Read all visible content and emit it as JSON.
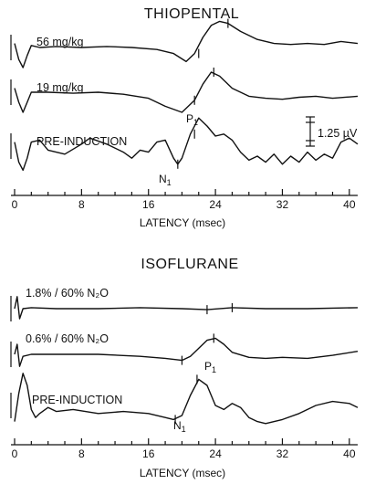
{
  "chart_data": [
    {
      "type": "line",
      "title": "THIOPENTAL",
      "xlabel": "LATENCY (msec)",
      "xlim": [
        0,
        41
      ],
      "xticks": [
        0,
        8,
        16,
        24,
        32,
        40
      ],
      "scale_bar": "1.25 µV",
      "series": [
        {
          "name": "56 mg/kg",
          "x": [
            0,
            0.5,
            1,
            1.5,
            2,
            3,
            5,
            8,
            11,
            14,
            17,
            19,
            20.5,
            21.5,
            22.5,
            23.5,
            24.5,
            25.5,
            27,
            29,
            31,
            33,
            35,
            37,
            39,
            41
          ],
          "y": [
            0.2,
            -0.6,
            -1.0,
            -0.4,
            0.1,
            0.0,
            0.05,
            0.0,
            0.05,
            0.0,
            -0.1,
            -0.3,
            -0.7,
            -0.3,
            0.5,
            1.1,
            1.3,
            1.2,
            0.8,
            0.4,
            0.2,
            0.15,
            0.2,
            0.15,
            0.3,
            0.2
          ]
        },
        {
          "name": "19 mg/kg",
          "x": [
            0,
            0.5,
            1,
            1.5,
            2,
            4,
            7,
            10,
            13,
            16,
            18,
            20,
            21.5,
            22.5,
            23.5,
            24.5,
            26,
            28,
            30,
            32,
            34,
            36,
            38,
            41
          ],
          "y": [
            0.2,
            -0.5,
            -1.0,
            -0.5,
            0.0,
            0.0,
            -0.05,
            0.0,
            -0.1,
            -0.3,
            -0.7,
            -1.0,
            -0.4,
            0.4,
            1.0,
            0.8,
            0.2,
            -0.2,
            -0.3,
            -0.35,
            -0.25,
            -0.2,
            -0.3,
            -0.2
          ]
        },
        {
          "name": "PRE-INDUCTION",
          "x": [
            0,
            0.5,
            1,
            1.5,
            2,
            3,
            4,
            6,
            8,
            9,
            11,
            13,
            14,
            15,
            16,
            17,
            18,
            19,
            19.5,
            20,
            21,
            22,
            23,
            24,
            25,
            26,
            27,
            28,
            29,
            30,
            31,
            32,
            33,
            34,
            35,
            36,
            37,
            38,
            39,
            40,
            41
          ],
          "y": [
            0.2,
            -0.8,
            -1.2,
            -0.6,
            0.2,
            0.3,
            -0.2,
            -0.4,
            0.1,
            0.4,
            0.1,
            -0.3,
            -0.6,
            -0.2,
            -0.3,
            0.2,
            0.3,
            -0.6,
            -0.9,
            -0.6,
            0.6,
            1.4,
            1.0,
            0.5,
            0.6,
            0.3,
            -0.3,
            -0.7,
            -0.5,
            -0.8,
            -0.4,
            -0.9,
            -0.5,
            -0.8,
            -0.3,
            -0.7,
            -0.4,
            -0.6,
            0.2,
            0.4,
            0.1
          ]
        }
      ],
      "annotations": [
        {
          "text": "P1",
          "x": 21.5,
          "series": "19 mg/kg"
        },
        {
          "text": "N1",
          "x": 19.5,
          "series": "PRE-INDUCTION"
        }
      ]
    },
    {
      "type": "line",
      "title": "ISOFLURANE",
      "xlabel": "LATENCY (msec)",
      "xlim": [
        0,
        41
      ],
      "xticks": [
        0,
        8,
        16,
        24,
        32,
        40
      ],
      "series": [
        {
          "name": "1.8% / 60% N₂O",
          "x": [
            0,
            0.3,
            0.6,
            1,
            2,
            5,
            10,
            15,
            20,
            23,
            26,
            30,
            35,
            41
          ],
          "y": [
            0.0,
            0.6,
            -0.5,
            0.0,
            0.05,
            0.0,
            0.0,
            0.05,
            0.0,
            -0.05,
            0.05,
            0.0,
            0.0,
            0.05
          ]
        },
        {
          "name": "0.6% / 60% N₂O",
          "x": [
            0,
            0.3,
            0.6,
            1,
            2,
            5,
            10,
            15,
            18,
            20,
            21,
            22,
            23,
            24,
            25,
            26,
            28,
            30,
            32,
            35,
            38,
            41
          ],
          "y": [
            0.0,
            0.5,
            -0.6,
            -0.1,
            0.0,
            0.0,
            0.0,
            -0.1,
            -0.2,
            -0.3,
            -0.1,
            0.3,
            0.7,
            0.8,
            0.5,
            0.1,
            -0.15,
            -0.2,
            -0.15,
            -0.2,
            -0.05,
            0.15
          ]
        },
        {
          "name": "PRE-INDUCTION",
          "x": [
            0,
            0.5,
            1,
            1.5,
            2,
            2.5,
            3,
            4,
            5,
            7,
            10,
            13,
            16,
            18,
            19,
            20,
            21,
            22,
            23,
            24,
            25,
            26,
            27,
            28,
            29,
            30,
            32,
            34,
            36,
            38,
            40,
            41
          ],
          "y": [
            -0.8,
            0.6,
            1.6,
            1.0,
            -0.2,
            -0.6,
            -0.4,
            -0.1,
            -0.3,
            -0.2,
            -0.4,
            -0.3,
            -0.4,
            -0.6,
            -0.7,
            -0.5,
            0.5,
            1.3,
            1.0,
            0.0,
            -0.2,
            0.1,
            -0.1,
            -0.6,
            -0.8,
            -0.9,
            -0.7,
            -0.4,
            0.0,
            0.2,
            0.1,
            -0.1
          ]
        }
      ],
      "annotations": [
        {
          "text": "P1",
          "x": 21.5,
          "series": "PRE-INDUCTION"
        },
        {
          "text": "N1",
          "x": 19.2,
          "series": "PRE-INDUCTION"
        }
      ]
    }
  ],
  "labels": {
    "panel1_title": "THIOPENTAL",
    "panel2_title": "ISOFLURANE",
    "xaxis_label": "LATENCY (msec)",
    "scale_bar": "1.25 µV",
    "p1_main": "P",
    "p1_sub": "1",
    "n1_main": "N",
    "n1_sub": "1"
  }
}
